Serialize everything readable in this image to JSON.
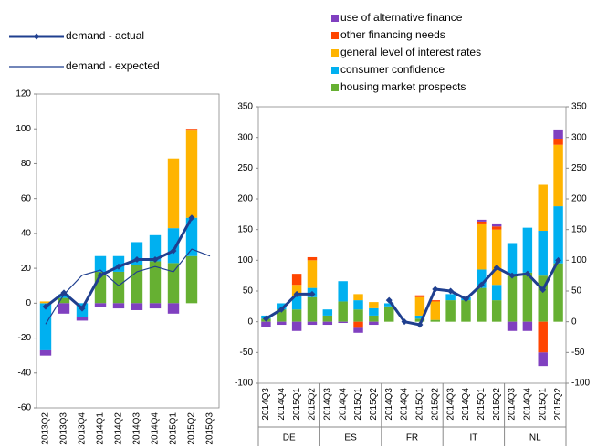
{
  "chart_data": [
    {
      "type": "bar-line",
      "categories": [
        "2013Q2",
        "2013Q3",
        "2013Q4",
        "2014Q1",
        "2014Q2",
        "2014Q3",
        "2014Q4",
        "2015Q1",
        "2015Q2",
        "2015Q3"
      ],
      "series": [
        {
          "color": "#8040c0",
          "values": [
            -3,
            -6,
            -2,
            -2,
            -3,
            -4,
            -3,
            -6,
            0,
            null
          ]
        },
        {
          "color": "#ff4500",
          "values": [
            0,
            0,
            0,
            0,
            0,
            0,
            0,
            0,
            1,
            null
          ]
        },
        {
          "color": "#ffb400",
          "values": [
            1,
            0,
            0,
            0,
            0,
            0,
            0,
            40,
            50,
            null
          ]
        },
        {
          "color": "#00b0f0",
          "values": [
            -27,
            2,
            -8,
            9,
            9,
            13,
            15,
            20,
            22,
            null
          ]
        },
        {
          "color": "#66b032",
          "values": [
            0,
            3,
            0,
            18,
            18,
            22,
            24,
            23,
            27,
            null
          ]
        }
      ],
      "lines": [
        {
          "name": "demand - actual",
          "color": "#1f3f8f",
          "width": 3,
          "markers": true,
          "values": [
            -2,
            6,
            -3,
            16,
            21,
            25,
            25,
            30,
            49,
            null
          ]
        },
        {
          "name": "demand - expected",
          "color": "#1f3f8f",
          "width": 1.2,
          "markers": false,
          "values": [
            -12,
            5,
            16,
            19,
            10,
            18,
            21,
            18,
            31,
            27
          ]
        }
      ],
      "ylim": [
        -60,
        120
      ],
      "yticks": [
        -60,
        -40,
        -20,
        0,
        20,
        40,
        60,
        80,
        100,
        120
      ]
    },
    {
      "type": "bar-line",
      "categories": [
        "2014Q3",
        "2014Q4",
        "2015Q1",
        "2015Q2",
        "2014Q3",
        "2014Q4",
        "2015Q1",
        "2015Q2",
        "2014Q3",
        "2014Q4",
        "2015Q1",
        "2015Q2",
        "2014Q3",
        "2014Q4",
        "2015Q1",
        "2015Q2",
        "2014Q3",
        "2014Q4",
        "2015Q1",
        "2015Q2"
      ],
      "groups": [
        "DE",
        "ES",
        "FR",
        "IT",
        "NL"
      ],
      "series": [
        {
          "name": "use of alternative finance",
          "color": "#8040c0",
          "values": [
            -8,
            -5,
            -15,
            -5,
            -5,
            -2,
            -8,
            -5,
            0,
            0,
            0,
            0,
            0,
            0,
            3,
            5,
            -15,
            -15,
            -22,
            15
          ]
        },
        {
          "name": "other financing needs",
          "color": "#ff4500",
          "values": [
            0,
            0,
            18,
            5,
            0,
            0,
            -10,
            0,
            0,
            0,
            3,
            2,
            0,
            0,
            3,
            5,
            0,
            0,
            -50,
            10
          ]
        },
        {
          "name": "general level of interest rates",
          "color": "#ffb400",
          "values": [
            0,
            0,
            18,
            45,
            0,
            0,
            10,
            10,
            0,
            0,
            30,
            30,
            0,
            0,
            75,
            90,
            0,
            0,
            75,
            100
          ]
        },
        {
          "name": "consumer confidence",
          "color": "#00b0f0",
          "values": [
            5,
            10,
            22,
            15,
            10,
            33,
            15,
            12,
            5,
            0,
            5,
            0,
            10,
            5,
            30,
            25,
            53,
            73,
            73,
            93
          ]
        },
        {
          "name": "housing market prospects",
          "color": "#66b032",
          "values": [
            5,
            20,
            20,
            40,
            10,
            33,
            20,
            10,
            25,
            0,
            5,
            3,
            35,
            35,
            55,
            35,
            75,
            80,
            75,
            95
          ]
        }
      ],
      "lines": [
        {
          "color": "#1f3f8f",
          "width": 3,
          "markers": true,
          "values": [
            5,
            20,
            45,
            45,
            null,
            null,
            null,
            null,
            35,
            0,
            -5,
            53,
            50,
            37,
            60,
            88,
            75,
            78,
            52,
            100
          ]
        }
      ],
      "ylim": [
        -100,
        350
      ],
      "yticks": [
        -100,
        -50,
        0,
        50,
        100,
        150,
        200,
        250,
        300,
        350
      ],
      "y2lim": [
        -100,
        350
      ],
      "y2ticks": [
        -100,
        -50,
        0,
        50,
        100,
        150,
        200,
        250,
        300,
        350
      ]
    }
  ]
}
